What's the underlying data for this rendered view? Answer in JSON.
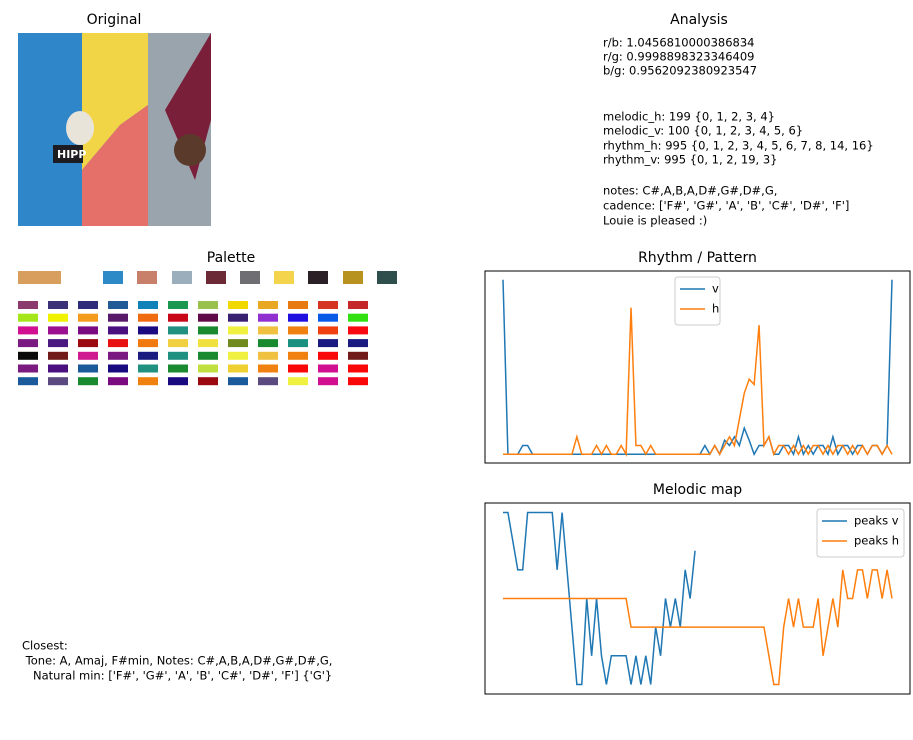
{
  "original": {
    "title": "Original",
    "image_text": "HIPP"
  },
  "analysis": {
    "title": "Analysis",
    "lines": [
      "r/b: 1.0456810000386834",
      "r/g: 0.9998898323346409",
      "b/g: 0.9562092380923547",
      "melodic_h: 199 {0, 1, 2, 3, 4}",
      "melodic_v: 100 {0, 1, 2, 3, 4, 5, 6}",
      "rhythm_h: 995 {0, 1, 2, 3, 4, 5, 6, 7, 8, 14, 16}",
      "rhythm_v: 995 {0, 1, 2, 19, 3}",
      "notes: C#,A,B,A,D#,G#,D#,G,",
      "cadence: ['F#', 'G#', 'A', 'B', 'C#', 'D#', 'F']",
      "Louie is pleased :)"
    ]
  },
  "palette": {
    "title": "Palette",
    "main": [
      "#d89e5e",
      "#2e8ac6",
      "#c8806a",
      "#9aaebb",
      "#6b2a35",
      "#6e6e73",
      "#f4d44c",
      "#2a2025",
      "#b8921f",
      "#2f4f4d"
    ],
    "grid": [
      [
        "#8b3a6e",
        "#3b3176",
        "#2e2b79",
        "#225a96",
        "#1082b8",
        "#1a9850",
        "#98c14d",
        "#f0d800",
        "#e8a822",
        "#e87a12",
        "#d63422",
        "#c4282a"
      ],
      [
        "#a5e61a",
        "#f0f200",
        "#f49a1c",
        "#5a1a6a",
        "#f06a10",
        "#c80818",
        "#600a48",
        "#3a2070",
        "#9030d0",
        "#2010e0",
        "#0a5ae8",
        "#30e010"
      ],
      [
        "#d01090",
        "#9a1090",
        "#7a0a80",
        "#4a1080",
        "#1a0a80",
        "#209080",
        "#1a8a30",
        "#f0f040",
        "#f0c040",
        "#f08010",
        "#f04010",
        "#f80810"
      ],
      [
        "#7a1a80",
        "#4a1a80",
        "#9a0a10",
        "#e81010",
        "#f07a10",
        "#f0d040",
        "#f0e040",
        "#708a20",
        "#1a8a30",
        "#1a9080",
        "#1a1a80",
        "#1a1a80"
      ],
      [
        "#0a0a0a",
        "#701a1a",
        "#d01a90",
        "#7a1a80",
        "#1a1a80",
        "#209080",
        "#1a8a30",
        "#f0f040",
        "#f0c040",
        "#f08010",
        "#f80808",
        "#701a1a"
      ],
      [
        "#7a1a80",
        "#4a1080",
        "#1a5a9a",
        "#1a0a80",
        "#209080",
        "#1a8a30",
        "#c0e040",
        "#f0d030",
        "#f08010",
        "#f80808",
        "#d01090",
        "#f80808"
      ],
      [
        "#1a5a9a",
        "#5a4a80",
        "#1a8a30",
        "#7a0a80",
        "#f08010",
        "#1a0a80",
        "#9a0a10",
        "#1a5a9a",
        "#5a4a80",
        "#f0f040",
        "#d01090",
        "#f80808"
      ]
    ]
  },
  "closest": {
    "lines": [
      "Closest:",
      " Tone: A, Amaj, F#min, Notes: C#,A,B,A,D#,G#,D#,G,",
      "   Natural min: ['F#', 'G#', 'A', 'B', 'C#', 'D#', 'F'] {'G'}"
    ]
  },
  "chart_data": [
    {
      "type": "line",
      "title": "Rhythm / Pattern",
      "xlim": [
        0,
        79
      ],
      "ylim": [
        -0.05,
        1.05
      ],
      "legend": "upper center",
      "series": [
        {
          "name": "v",
          "color": "#1f77b4",
          "values": [
            1,
            0,
            0,
            0,
            0.05,
            0.05,
            0,
            0,
            0,
            0,
            0,
            0,
            0,
            0,
            0,
            0,
            0,
            0,
            0,
            0,
            0,
            0,
            0,
            0,
            0,
            0,
            0,
            0,
            0,
            0,
            0,
            0,
            0,
            0,
            0,
            0,
            0,
            0,
            0,
            0,
            0,
            0.05,
            0,
            0.05,
            0,
            0.08,
            0.05,
            0.1,
            0.05,
            0.15,
            0.08,
            0,
            0.05,
            0.05,
            0.1,
            0,
            0,
            0.05,
            0.05,
            0,
            0.1,
            0,
            0.05,
            0,
            0.05,
            0.05,
            0,
            0.1,
            0,
            0.05,
            0.05,
            0,
            0.05,
            0.05,
            0,
            0.05,
            0.05,
            0,
            0.05,
            1
          ]
        },
        {
          "name": "h",
          "color": "#ff7f0e",
          "values": [
            0,
            0,
            0,
            0,
            0,
            0,
            0,
            0,
            0,
            0,
            0,
            0,
            0,
            0,
            0,
            0.1,
            0,
            0,
            0,
            0.05,
            0,
            0.05,
            0,
            0,
            0.05,
            0,
            0.84,
            0.05,
            0.05,
            0,
            0.05,
            0,
            0,
            0,
            0,
            0,
            0,
            0,
            0,
            0,
            0,
            0,
            0,
            0.05,
            0,
            0.05,
            0.1,
            0.05,
            0.2,
            0.35,
            0.43,
            0.4,
            0.74,
            0.05,
            0.1,
            0,
            0.05,
            0.05,
            0,
            0.05,
            0,
            0.05,
            0,
            0.05,
            0.05,
            0,
            0.05,
            0,
            0.05,
            0.05,
            0,
            0.05,
            0,
            0.05,
            0,
            0.05,
            0.05,
            0,
            0.05,
            0
          ]
        }
      ]
    },
    {
      "type": "line",
      "title": "Melodic map",
      "xlim": [
        0,
        79
      ],
      "ylim": [
        0,
        10
      ],
      "legend": "upper right",
      "series": [
        {
          "name": "peaks v",
          "color": "#1f77b4",
          "values": [
            9.5,
            9.5,
            8,
            6.5,
            6.5,
            9.5,
            9.5,
            9.5,
            9.5,
            9.5,
            9.5,
            6.5,
            9.5,
            6.5,
            3.5,
            0.5,
            0.5,
            5,
            2,
            5,
            2,
            0.5,
            2,
            2,
            2,
            2,
            0.5,
            2,
            0.5,
            2,
            0.5,
            3.5,
            2,
            5,
            3.5,
            5,
            3.5,
            6.5,
            5,
            7.5
          ]
        },
        {
          "name": "peaks h",
          "color": "#ff7f0e",
          "values": [
            5,
            5,
            5,
            5,
            5,
            5,
            5,
            5,
            5,
            5,
            5,
            5,
            5,
            5,
            5,
            5,
            5,
            5,
            5,
            5,
            5,
            5,
            5,
            5,
            5,
            5,
            3.5,
            3.5,
            3.5,
            3.5,
            3.5,
            3.5,
            3.5,
            3.5,
            3.5,
            3.5,
            3.5,
            3.5,
            3.5,
            3.5,
            3.5,
            3.5,
            3.5,
            3.5,
            3.5,
            3.5,
            3.5,
            3.5,
            3.5,
            3.5,
            3.5,
            3.5,
            3.5,
            3.5,
            2,
            0.5,
            0.5,
            3.5,
            5,
            3.5,
            5,
            3.5,
            3.5,
            3.5,
            5,
            2,
            3.5,
            5,
            3.5,
            6.5,
            5,
            5,
            6.5,
            6.5,
            5,
            6.5,
            6.5,
            5,
            6.5,
            5
          ]
        }
      ]
    }
  ]
}
